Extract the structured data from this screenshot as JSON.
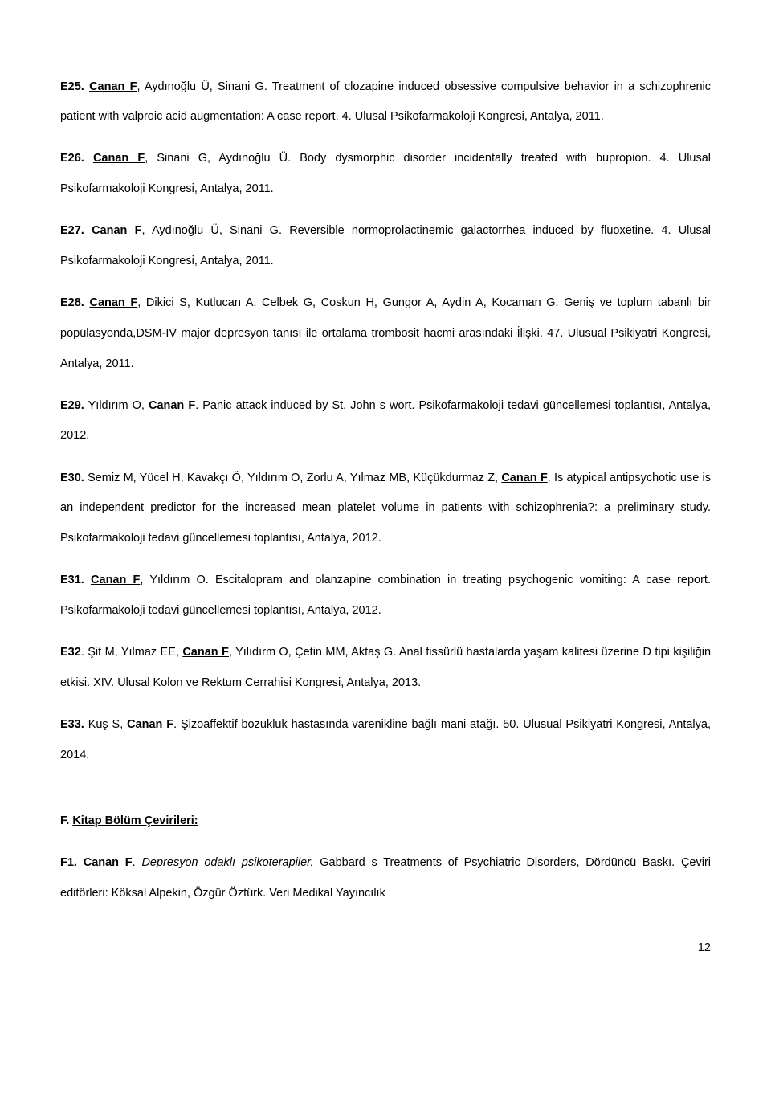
{
  "entries": {
    "e25": {
      "label": "E25.",
      "authors_prefix": "",
      "emph": "Canan F",
      "authors_rest": ", Aydınoğlu Ü, Sinani G.",
      "text": " Treatment of clozapine induced obsessive compulsive behavior in a schizophrenic patient with valproic acid augmentation: A case report. 4. Ulusal Psikofarmakoloji Kongresi, Antalya, 2011."
    },
    "e26": {
      "label": "E26.",
      "emph": "Canan F",
      "authors_rest": ", Sinani G, Aydınoğlu Ü.",
      "text": " Body dysmorphic disorder incidentally treated with bupropion. 4. Ulusal Psikofarmakoloji Kongresi, Antalya, 2011."
    },
    "e27": {
      "label": "E27.",
      "emph": "Canan F",
      "authors_rest": ", Aydınoğlu Ü, Sinani G.",
      "text": " Reversible normoprolactinemic galactorrhea induced by fluoxetine. 4. Ulusal Psikofarmakoloji Kongresi, Antalya, 2011."
    },
    "e28": {
      "label": "E28.",
      "emph": "Canan F",
      "authors_rest": ", Dikici S, Kutlucan A, Celbek G, Coskun H, Gungor A, Aydin A, Kocaman G.",
      "text": " Geniş ve toplum tabanlı bir popülasyonda,DSM-IV major depresyon tanısı ile ortalama trombosit hacmi arasındaki İlişki. 47. Ulusual Psikiyatri Kongresi, Antalya, 2011."
    },
    "e29": {
      "label": "E29.",
      "authors_pre": " Yıldırım O, ",
      "emph": "Canan F",
      "authors_rest": ".",
      "text": " Panic attack induced by St. John s wort. Psikofarmakoloji tedavi güncellemesi toplantısı, Antalya, 2012."
    },
    "e30": {
      "label": "E30.",
      "authors_pre": " Semiz M, Yücel H, Kavakçı Ö, Yıldırım O, Zorlu A, Yılmaz MB, Küçükdurmaz Z, ",
      "emph": "Canan F",
      "authors_rest": ".",
      "text": " Is atypical antipsychotic use is an independent predictor for the increased mean platelet volume in patients with schizophrenia?: a preliminary study. Psikofarmakoloji tedavi güncellemesi toplantısı, Antalya, 2012."
    },
    "e31": {
      "label": "E31.",
      "emph": "Canan F",
      "authors_rest": ", Yıldırım O.",
      "text": " Escitalopram and olanzapine combination in treating psychogenic vomiting: A case report. Psikofarmakoloji tedavi güncellemesi toplantısı, Antalya, 2012."
    },
    "e32": {
      "label": "E32",
      "authors_pre": ". Şit M, Yılmaz EE, ",
      "emph": "Canan F",
      "authors_rest": ", Yılıdırm O, Çetin MM, Aktaş G.",
      "text": " Anal fissürlü hastalarda yaşam kalitesi üzerine D tipi kişiliğin etkisi. XIV. Ulusal Kolon ve Rektum Cerrahisi Kongresi, Antalya, 2013."
    },
    "e33": {
      "label": "E33.",
      "authors_pre": " Kuş S, ",
      "emph": "Canan F",
      "authors_rest": ".",
      "text": " Şizoaffektif bozukluk hastasında varenikline bağlı mani atağı. 50. Ulusual Psikiyatri Kongresi, Antalya, 2014."
    }
  },
  "section": {
    "label": "F.",
    "title": "Kitap Bölüm Çevirileri:"
  },
  "f1": {
    "label": "F1.",
    "emph": "Canan F",
    "period": ". ",
    "italic": "Depresyon odaklı psikoterapiler.",
    "rest": " Gabbard s Treatments of Psychiatric Disorders, Dördüncü Baskı. Çeviri editörleri: Köksal Alpekin, Özgür Öztürk. Veri Medikal Yayıncılık"
  },
  "page_number": "12"
}
